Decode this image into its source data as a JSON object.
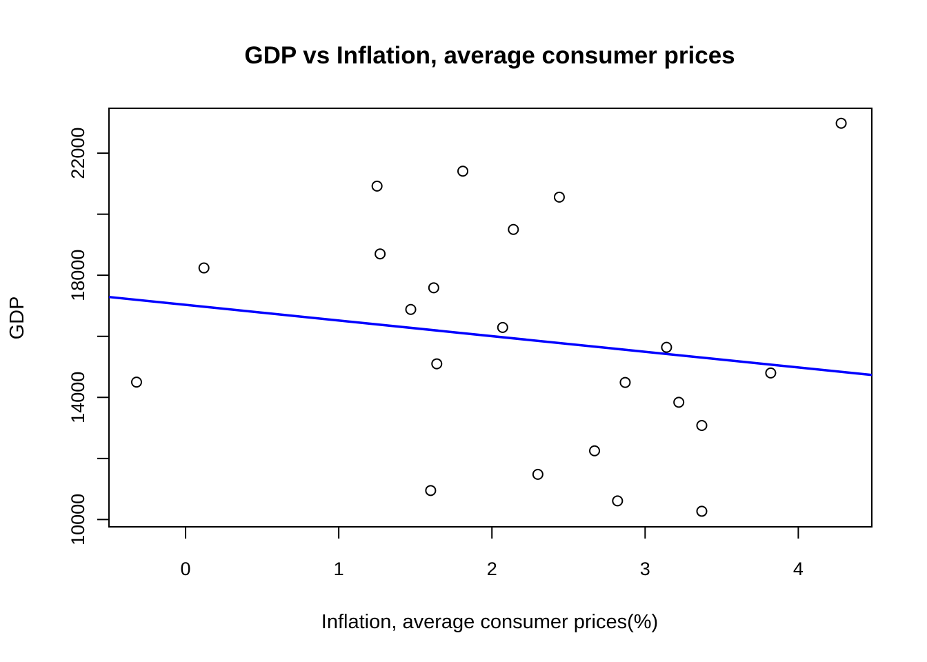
{
  "chart_data": {
    "type": "scatter",
    "title": "GDP vs Inflation, average consumer prices",
    "xlabel": "Inflation, average consumer prices(%)",
    "ylabel": "GDP",
    "xlim": [
      -0.5,
      4.48
    ],
    "ylim": [
      9760,
      23470
    ],
    "x_ticks": [
      0,
      1,
      2,
      3,
      4
    ],
    "y_ticks": [
      10000,
      12000,
      14000,
      16000,
      18000,
      20000,
      22000
    ],
    "y_tick_labels": [
      "10000",
      "",
      "14000",
      "",
      "18000",
      "",
      "22000"
    ],
    "grid": false,
    "points": [
      {
        "x": -0.32,
        "y": 14500
      },
      {
        "x": 0.12,
        "y": 18240
      },
      {
        "x": 1.25,
        "y": 20920
      },
      {
        "x": 1.27,
        "y": 18700
      },
      {
        "x": 1.47,
        "y": 16880
      },
      {
        "x": 1.6,
        "y": 10950
      },
      {
        "x": 1.62,
        "y": 17590
      },
      {
        "x": 1.64,
        "y": 15100
      },
      {
        "x": 1.81,
        "y": 21410
      },
      {
        "x": 2.07,
        "y": 16290
      },
      {
        "x": 2.14,
        "y": 19500
      },
      {
        "x": 2.3,
        "y": 11480
      },
      {
        "x": 2.44,
        "y": 20560
      },
      {
        "x": 2.67,
        "y": 12250
      },
      {
        "x": 2.82,
        "y": 10610
      },
      {
        "x": 2.87,
        "y": 14490
      },
      {
        "x": 3.14,
        "y": 15640
      },
      {
        "x": 3.22,
        "y": 13840
      },
      {
        "x": 3.37,
        "y": 13080
      },
      {
        "x": 3.37,
        "y": 10270
      },
      {
        "x": 3.82,
        "y": 14800
      },
      {
        "x": 4.28,
        "y": 22980
      }
    ],
    "fit_line": {
      "intercept": 17032,
      "slope": -513,
      "color": "#0000ff"
    }
  }
}
